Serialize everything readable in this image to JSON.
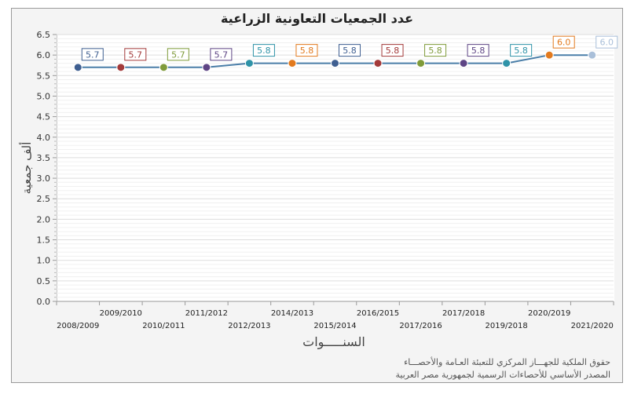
{
  "chart_data": {
    "type": "line",
    "title": "عدد الجمعيات التعاونية الزراعية",
    "xlabel": "السنـــــوات",
    "ylabel": "ألف جمعية",
    "categories": [
      "2008/2009",
      "2009/2010",
      "2010/2011",
      "2011/2012",
      "2012/2013",
      "2014/2013",
      "2015/2014",
      "2016/2015",
      "2017/2016",
      "2017/2018",
      "2019/2018",
      "2020/2019",
      "2021/2020"
    ],
    "values": [
      5.7,
      5.7,
      5.7,
      5.7,
      5.8,
      5.8,
      5.8,
      5.8,
      5.8,
      5.8,
      5.8,
      6.0,
      6.0
    ],
    "data_labels": [
      "5.7",
      "5.7",
      "5.7",
      "5.7",
      "5.8",
      "5.8",
      "5.8",
      "5.8",
      "5.8",
      "5.8",
      "5.8",
      "6.0",
      "6.0"
    ],
    "point_colors": [
      "#3f5f91",
      "#a33a3a",
      "#7f9b3a",
      "#5e4585",
      "#2f93a8",
      "#e27a1e",
      "#3f5f91",
      "#a33a3a",
      "#7f9b3a",
      "#5e4585",
      "#2f93a8",
      "#e27a1e",
      "#a9bfd9"
    ],
    "line_color": "#4a7ea8",
    "ylim": [
      0,
      6.5
    ],
    "y_major_step": 0.5,
    "y_ticks": [
      "0.0",
      "0.5",
      "1.0",
      "1.5",
      "2.0",
      "2.5",
      "3.0",
      "3.5",
      "4.0",
      "4.5",
      "5.0",
      "5.5",
      "6.0",
      "6.5"
    ],
    "grid": true,
    "legend": "none"
  },
  "source": {
    "line1": "حقوق الملكية للجهـــاز المركزي للتعبئة العـامة والأحصـــاء",
    "line2": "المصدر الأساسي للأحصاءات الرسمية لجمهورية مصر العربية"
  }
}
